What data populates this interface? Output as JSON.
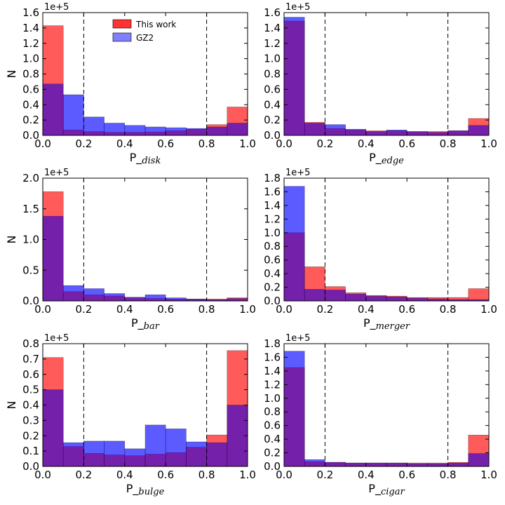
{
  "colors": {
    "this_work": "#ff0000",
    "gz2": "#0000ff",
    "overlap": "#800080"
  },
  "legend": {
    "this_work": "This work",
    "gz2": "GZ2"
  },
  "ylabel_left": "N",
  "chart_data": [
    {
      "type": "bar",
      "title": "",
      "xlabel_main": "P_",
      "xlabel_sub": "disk",
      "ylabel": "N",
      "ylim": [
        0,
        1.6
      ],
      "yticks": [
        "0.0",
        "0.2",
        "0.4",
        "0.6",
        "0.8",
        "1.0",
        "1.2",
        "1.4",
        "1.6"
      ],
      "sci_offset": "1e+5",
      "xticks": [
        "0.0",
        "0.2",
        "0.4",
        "0.6",
        "0.8",
        "1.0"
      ],
      "thresholds": [
        0.2,
        0.8
      ],
      "series": [
        {
          "name": "This work",
          "values": [
            1.43,
            0.07,
            0.05,
            0.04,
            0.04,
            0.045,
            0.06,
            0.08,
            0.14,
            0.37
          ]
        },
        {
          "name": "GZ2",
          "values": [
            0.67,
            0.53,
            0.24,
            0.16,
            0.13,
            0.11,
            0.1,
            0.09,
            0.11,
            0.16
          ]
        }
      ]
    },
    {
      "type": "bar",
      "title": "",
      "xlabel_main": "P_",
      "xlabel_sub": "edge",
      "ylabel": "",
      "ylim": [
        0,
        1.6
      ],
      "yticks": [
        "0.0",
        "0.2",
        "0.4",
        "0.6",
        "0.8",
        "1.0",
        "1.2",
        "1.4",
        "1.6"
      ],
      "sci_offset": "1e+5",
      "xticks": [
        "0.0",
        "0.2",
        "0.4",
        "0.6",
        "0.8",
        "1.0"
      ],
      "thresholds": [
        0.2,
        0.8
      ],
      "series": [
        {
          "name": "This work",
          "values": [
            1.49,
            0.17,
            0.09,
            0.07,
            0.06,
            0.06,
            0.05,
            0.05,
            0.06,
            0.22
          ]
        },
        {
          "name": "GZ2",
          "values": [
            1.54,
            0.16,
            0.14,
            0.08,
            0.05,
            0.07,
            0.05,
            0.04,
            0.06,
            0.13
          ]
        }
      ]
    },
    {
      "type": "bar",
      "title": "",
      "xlabel_main": "P_",
      "xlabel_sub": "bar",
      "ylabel": "N",
      "ylim": [
        0,
        2.0
      ],
      "yticks": [
        "0.0",
        "0.5",
        "1.0",
        "1.5",
        "2.0"
      ],
      "sci_offset": "1e+5",
      "xticks": [
        "0.0",
        "0.2",
        "0.4",
        "0.6",
        "0.8",
        "1.0"
      ],
      "thresholds": [
        0.2,
        0.8
      ],
      "series": [
        {
          "name": "This work",
          "values": [
            1.78,
            0.15,
            0.1,
            0.08,
            0.05,
            0.04,
            0.03,
            0.03,
            0.03,
            0.05
          ]
        },
        {
          "name": "GZ2",
          "values": [
            1.38,
            0.25,
            0.2,
            0.12,
            0.06,
            0.1,
            0.05,
            0.03,
            0.02,
            0.04
          ]
        }
      ]
    },
    {
      "type": "bar",
      "title": "",
      "xlabel_main": "P_",
      "xlabel_sub": "merger",
      "ylabel": "",
      "ylim": [
        0,
        1.8
      ],
      "yticks": [
        "0.0",
        "0.2",
        "0.4",
        "0.6",
        "0.8",
        "1.0",
        "1.2",
        "1.4",
        "1.6",
        "1.8"
      ],
      "sci_offset": "1e+5",
      "xticks": [
        "0.0",
        "0.2",
        "0.4",
        "0.6",
        "0.8",
        "1.0"
      ],
      "thresholds": [
        0.2,
        0.8
      ],
      "series": [
        {
          "name": "This work",
          "values": [
            1.0,
            0.5,
            0.21,
            0.12,
            0.08,
            0.07,
            0.05,
            0.05,
            0.05,
            0.18
          ]
        },
        {
          "name": "GZ2",
          "values": [
            1.68,
            0.17,
            0.16,
            0.1,
            0.07,
            0.06,
            0.04,
            0.03,
            0.02,
            0.02
          ]
        }
      ]
    },
    {
      "type": "bar",
      "title": "",
      "xlabel_main": "P_",
      "xlabel_sub": "bulge",
      "ylabel": "N",
      "ylim": [
        0,
        0.8
      ],
      "yticks": [
        "0.0",
        "0.1",
        "0.2",
        "0.3",
        "0.4",
        "0.5",
        "0.6",
        "0.7",
        "0.8"
      ],
      "sci_offset": "1e+5",
      "xticks": [
        "0.0",
        "0.2",
        "0.4",
        "0.6",
        "0.8",
        "1.0"
      ],
      "thresholds": [
        0.2,
        0.8
      ],
      "series": [
        {
          "name": "This work",
          "values": [
            0.71,
            0.13,
            0.085,
            0.075,
            0.07,
            0.08,
            0.09,
            0.125,
            0.205,
            0.755
          ]
        },
        {
          "name": "GZ2",
          "values": [
            0.5,
            0.155,
            0.165,
            0.165,
            0.115,
            0.27,
            0.245,
            0.16,
            0.155,
            0.4
          ]
        }
      ]
    },
    {
      "type": "bar",
      "title": "",
      "xlabel_main": "P_",
      "xlabel_sub": "cigar",
      "ylabel": "",
      "ylim": [
        0,
        1.8
      ],
      "yticks": [
        "0.0",
        "0.2",
        "0.4",
        "0.6",
        "0.8",
        "1.0",
        "1.2",
        "1.4",
        "1.6",
        "1.8"
      ],
      "sci_offset": "1e+5",
      "xticks": [
        "0.0",
        "0.2",
        "0.4",
        "0.6",
        "0.8",
        "1.0"
      ],
      "thresholds": [
        0.2,
        0.8
      ],
      "series": [
        {
          "name": "This work",
          "values": [
            1.45,
            0.07,
            0.06,
            0.05,
            0.05,
            0.05,
            0.05,
            0.05,
            0.06,
            0.46
          ]
        },
        {
          "name": "GZ2",
          "values": [
            1.69,
            0.1,
            0.06,
            0.05,
            0.05,
            0.05,
            0.04,
            0.04,
            0.05,
            0.19
          ]
        }
      ]
    }
  ]
}
